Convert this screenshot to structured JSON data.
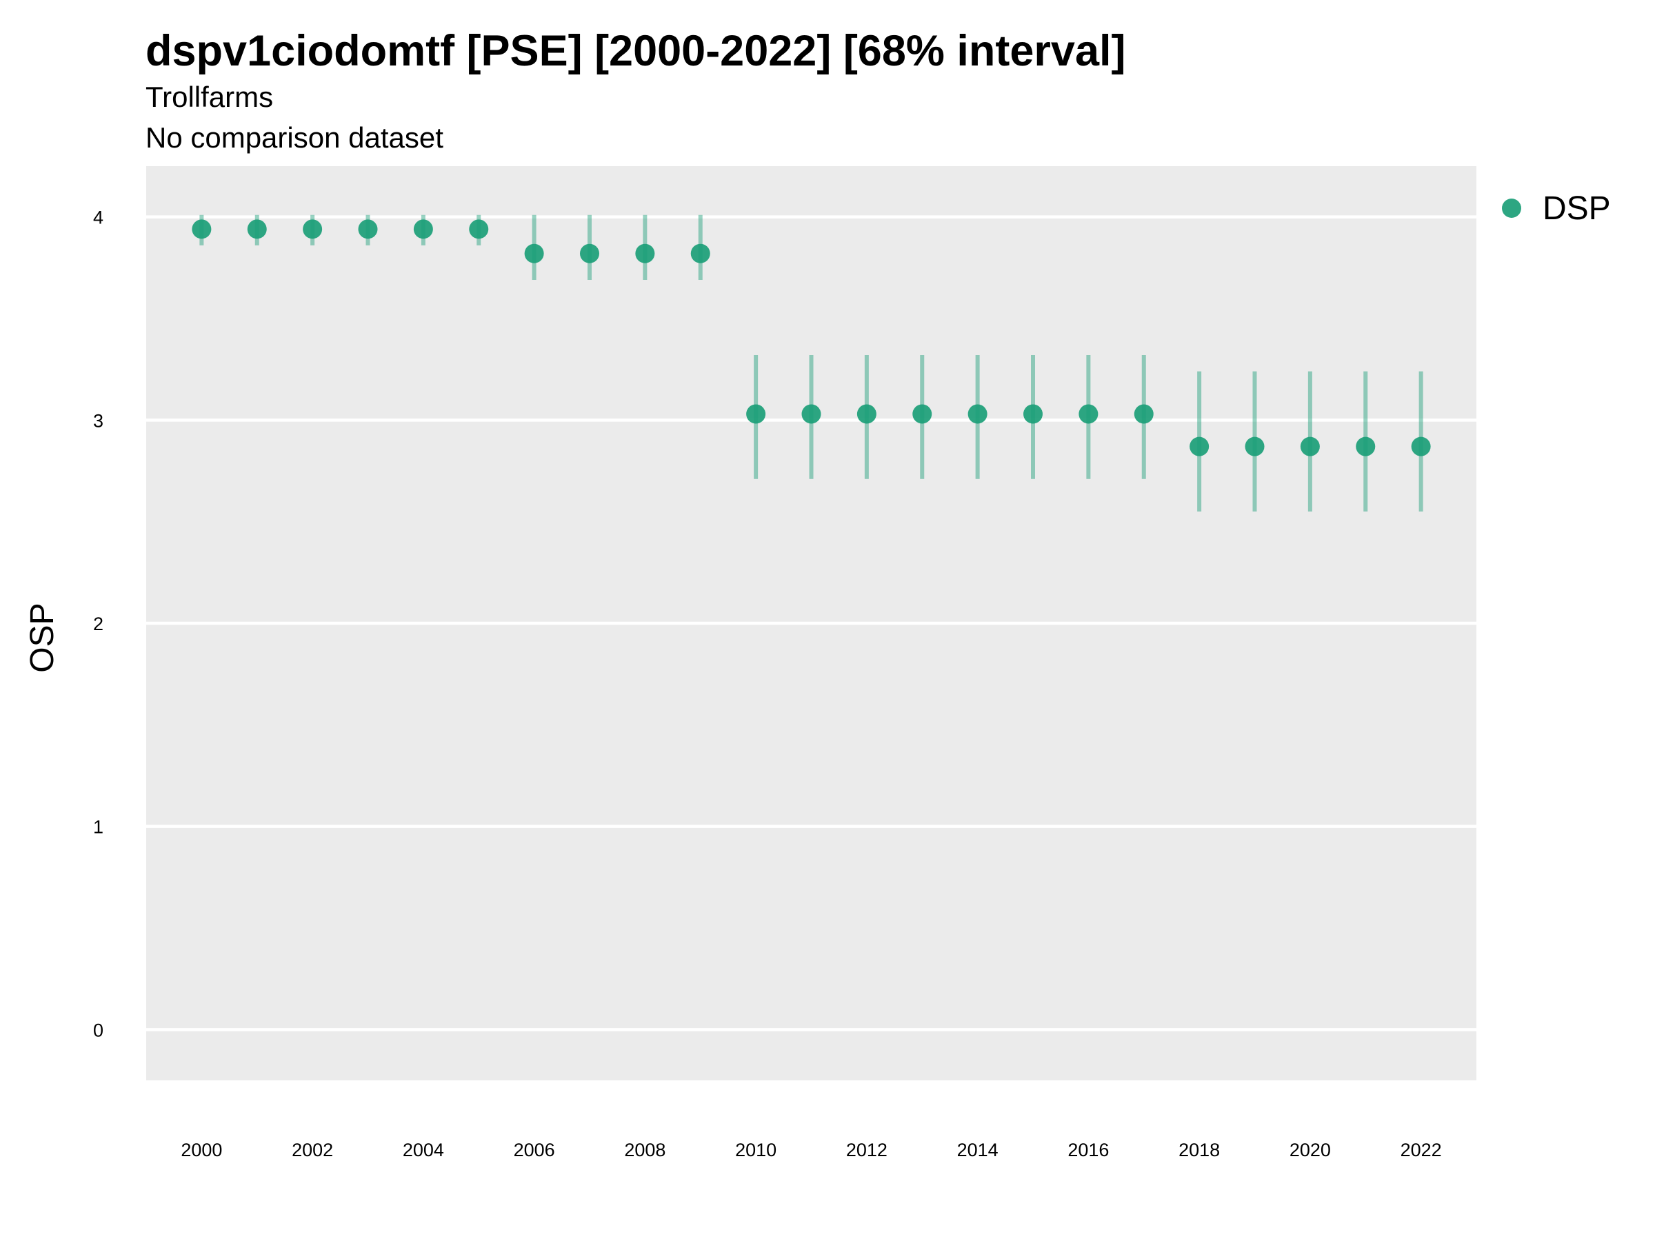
{
  "chart_data": {
    "type": "scatter",
    "title": "dspv1ciodomtf [PSE] [2000-2022] [68% interval]",
    "subtitle": "Trollfarms",
    "caption_line": "No comparison dataset",
    "xlabel": "",
    "ylabel": "OSP",
    "ylim": [
      -0.25,
      4.25
    ],
    "xlim": [
      1999.0,
      2023.0
    ],
    "y_ticks": [
      0,
      1,
      2,
      3,
      4
    ],
    "x_ticks": [
      2000,
      2002,
      2004,
      2006,
      2008,
      2010,
      2012,
      2014,
      2016,
      2018,
      2020,
      2022
    ],
    "grid": "horizontal major only",
    "legend_position": "right",
    "colors": {
      "panel_background": "#ebebeb",
      "gridline": "#ffffff",
      "point": "#1b9e77",
      "interval": "#1b9e77"
    },
    "series": [
      {
        "name": "DSP",
        "x": [
          2000,
          2001,
          2002,
          2003,
          2004,
          2005,
          2006,
          2007,
          2008,
          2009,
          2010,
          2011,
          2012,
          2013,
          2014,
          2015,
          2016,
          2017,
          2018,
          2019,
          2020,
          2021,
          2022
        ],
        "y": [
          3.94,
          3.94,
          3.94,
          3.94,
          3.94,
          3.94,
          3.82,
          3.82,
          3.82,
          3.82,
          3.03,
          3.03,
          3.03,
          3.03,
          3.03,
          3.03,
          3.03,
          3.03,
          2.87,
          2.87,
          2.87,
          2.87,
          2.87
        ],
        "lower": [
          3.86,
          3.86,
          3.86,
          3.86,
          3.86,
          3.86,
          3.69,
          3.69,
          3.69,
          3.69,
          2.71,
          2.71,
          2.71,
          2.71,
          2.71,
          2.71,
          2.71,
          2.71,
          2.55,
          2.55,
          2.55,
          2.55,
          2.55
        ],
        "upper": [
          4.01,
          4.01,
          4.01,
          4.01,
          4.01,
          4.01,
          4.01,
          4.01,
          4.01,
          4.01,
          3.32,
          3.32,
          3.32,
          3.32,
          3.32,
          3.32,
          3.32,
          3.32,
          3.24,
          3.24,
          3.24,
          3.24,
          3.24
        ]
      }
    ]
  }
}
